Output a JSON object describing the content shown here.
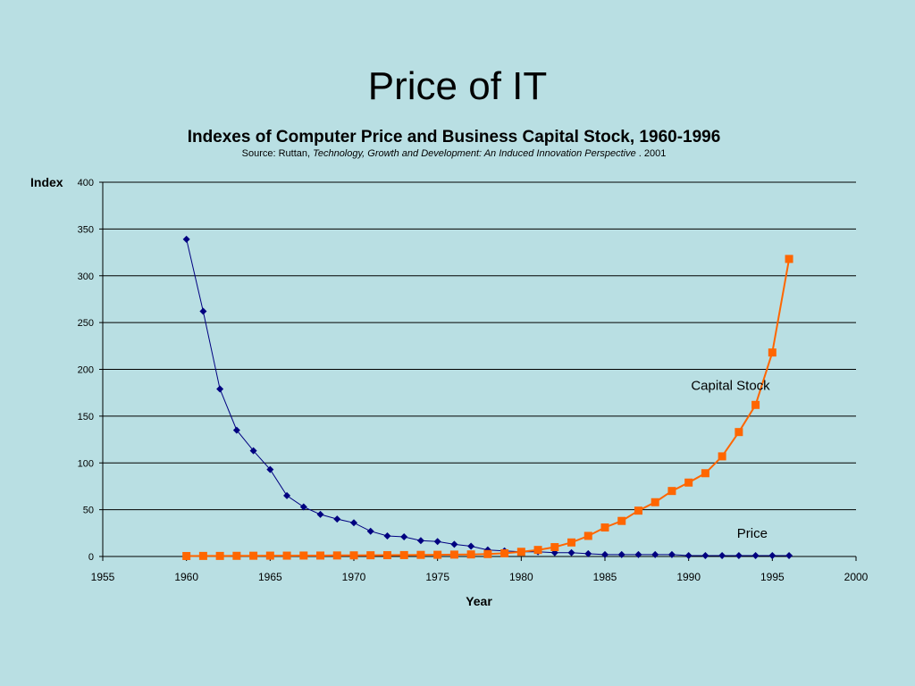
{
  "slide": {
    "title": "Price of IT"
  },
  "chart_header": {
    "title": "Indexes of Computer Price and Business Capital Stock, 1960-1996",
    "source_prefix": "Source:  Ruttan, ",
    "source_book": "Technology, Growth and Development:   An Induced Innovation Perspective",
    "source_suffix": " . 2001"
  },
  "colors": {
    "background": "#b9dfe3",
    "price": "#000080",
    "capital_stock": "#ff6600",
    "gridline": "#000000"
  },
  "chart_data": {
    "type": "line",
    "title": "Indexes of Computer Price and Business Capital Stock, 1960-1996",
    "xlabel": "Year",
    "ylabel": "Index",
    "xlim": [
      1955,
      2000
    ],
    "ylim": [
      0,
      400
    ],
    "x_ticks": [
      1955,
      1960,
      1965,
      1970,
      1975,
      1980,
      1985,
      1990,
      1995,
      2000
    ],
    "y_ticks": [
      0,
      50,
      100,
      150,
      200,
      250,
      300,
      350,
      400
    ],
    "grid": "horizontal",
    "legend": "none",
    "x": [
      1960,
      1961,
      1962,
      1963,
      1964,
      1965,
      1966,
      1967,
      1968,
      1969,
      1970,
      1971,
      1972,
      1973,
      1974,
      1975,
      1976,
      1977,
      1978,
      1979,
      1980,
      1981,
      1982,
      1983,
      1984,
      1985,
      1986,
      1987,
      1988,
      1989,
      1990,
      1991,
      1992,
      1993,
      1994,
      1995,
      1996
    ],
    "series": [
      {
        "name": "Price",
        "marker": "diamond",
        "values": [
          339,
          262,
          179,
          135,
          113,
          93,
          65,
          53,
          45,
          40,
          36,
          27,
          22,
          21,
          17,
          16,
          13,
          11,
          7,
          6,
          5,
          5,
          4,
          4,
          3,
          2,
          2,
          2,
          2,
          2,
          1,
          1,
          1,
          1,
          1,
          1,
          1
        ]
      },
      {
        "name": "Capital Stock",
        "marker": "square",
        "values": [
          0.5,
          0.6,
          0.6,
          0.7,
          0.8,
          0.9,
          0.9,
          1,
          1,
          1.1,
          1.2,
          1.3,
          1.4,
          1.5,
          1.7,
          1.8,
          2,
          2.2,
          2.6,
          3.4,
          5,
          7,
          10,
          15,
          22,
          31,
          38,
          49,
          58,
          70,
          79,
          89,
          107,
          133,
          162,
          218,
          318
        ]
      }
    ],
    "annotations": [
      {
        "text": "Capital Stock",
        "x": 1992.5,
        "y": 178
      },
      {
        "text": "Price",
        "x": 1993.8,
        "y": 20
      }
    ]
  }
}
